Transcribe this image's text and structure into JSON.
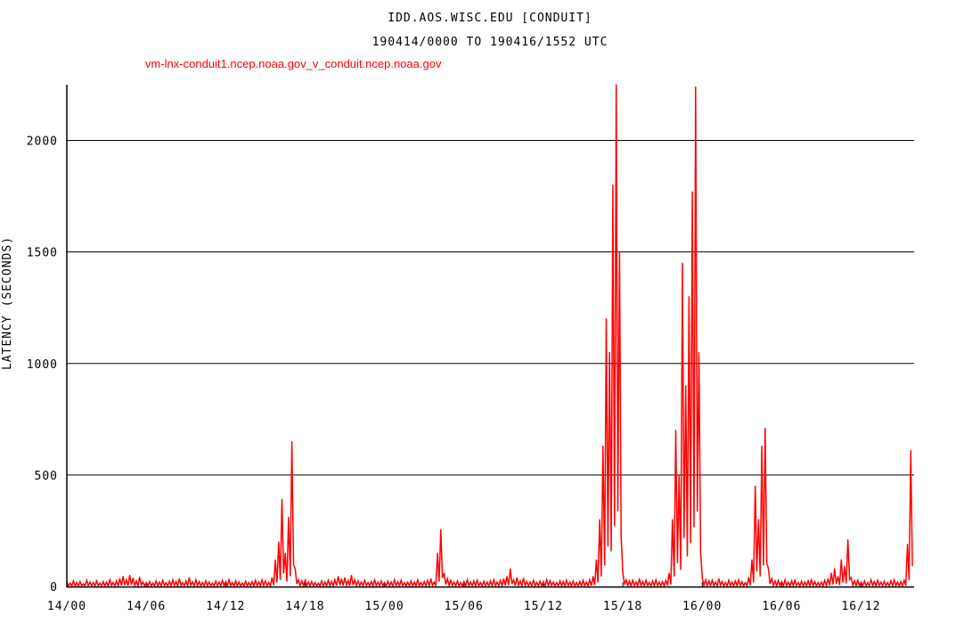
{
  "chart_data": {
    "type": "line",
    "title": "IDD.AOS.WISC.EDU [CONDUIT]",
    "subtitle": "190414/0000 TO 190416/1552 UTC",
    "ylabel": "LATENCY (SECONDS)",
    "xlabel": "",
    "ylim": [
      0,
      2250
    ],
    "xlim": [
      "14/00",
      "16/16"
    ],
    "grid": true,
    "yticks": [
      0,
      500,
      1000,
      1500,
      2000
    ],
    "xticks": [
      "14/00",
      "14/06",
      "14/12",
      "14/18",
      "15/00",
      "15/06",
      "15/12",
      "15/18",
      "16/00",
      "16/06",
      "16/12"
    ],
    "series": [
      {
        "name": "vm-lnx-conduit1.ncep.noaa.gov_v_conduit.ncep.noaa.gov",
        "color": "#ff0000",
        "x_start": "14/00",
        "x_step_minutes": 15,
        "values": [
          20,
          15,
          25,
          18,
          22,
          12,
          28,
          20,
          18,
          25,
          15,
          22,
          20,
          30,
          18,
          25,
          35,
          45,
          30,
          50,
          38,
          25,
          42,
          20,
          18,
          22,
          15,
          25,
          20,
          28,
          16,
          24,
          30,
          22,
          35,
          18,
          25,
          40,
          20,
          30,
          22,
          18,
          26,
          20,
          15,
          24,
          20,
          28,
          22,
          30,
          18,
          25,
          20,
          16,
          24,
          18,
          22,
          28,
          20,
          30,
          25,
          18,
          40,
          120,
          200,
          390,
          150,
          310,
          650,
          80,
          30,
          25,
          28,
          20,
          22,
          18,
          15,
          25,
          20,
          28,
          22,
          30,
          45,
          35,
          40,
          28,
          50,
          30,
          25,
          20,
          28,
          18,
          22,
          30,
          20,
          25,
          18,
          24,
          20,
          30,
          22,
          28,
          18,
          20,
          25,
          20,
          30,
          18,
          22,
          28,
          35,
          20,
          150,
          255,
          60,
          35,
          28,
          20,
          25,
          18,
          22,
          30,
          20,
          25,
          28,
          18,
          24,
          20,
          25,
          30,
          20,
          28,
          35,
          45,
          80,
          30,
          40,
          25,
          38,
          22,
          20,
          28,
          18,
          24,
          22,
          30,
          26,
          20,
          18,
          25,
          22,
          28,
          20,
          24,
          18,
          22,
          28,
          20,
          30,
          45,
          120,
          300,
          630,
          1200,
          1050,
          1800,
          2250,
          1500,
          60,
          30,
          25,
          28,
          20,
          35,
          22,
          28,
          18,
          25,
          30,
          20,
          22,
          28,
          60,
          300,
          700,
          500,
          1450,
          900,
          1300,
          1770,
          2240,
          1050,
          40,
          30,
          25,
          28,
          20,
          35,
          22,
          18,
          28,
          20,
          25,
          30,
          22,
          18,
          40,
          120,
          450,
          300,
          630,
          710,
          80,
          35,
          25,
          28,
          22,
          30,
          20,
          25,
          28,
          18,
          24,
          20,
          25,
          30,
          22,
          18,
          20,
          28,
          35,
          60,
          80,
          45,
          120,
          90,
          210,
          40,
          25,
          28,
          20,
          25,
          18,
          30,
          22,
          28,
          20,
          24,
          18,
          25,
          30,
          20,
          22,
          28,
          190,
          610
        ]
      }
    ]
  }
}
